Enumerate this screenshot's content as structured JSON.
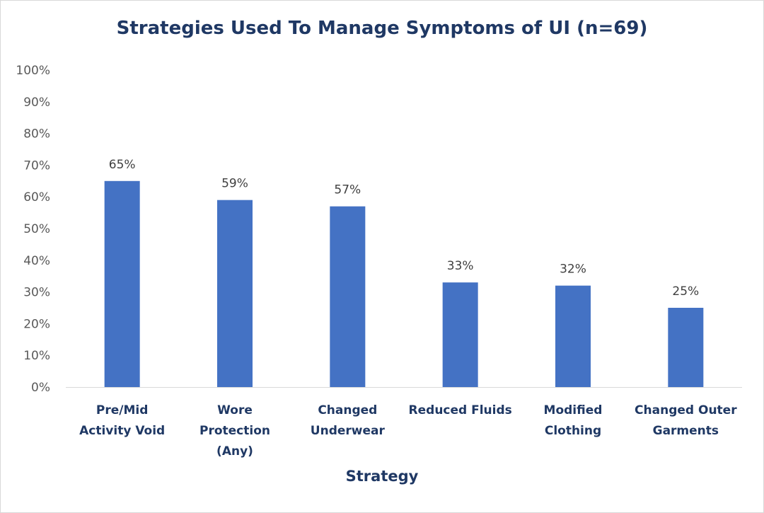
{
  "chart_data": {
    "type": "bar",
    "title": "Strategies Used To Manage Symptoms of UI (n=69)",
    "xlabel": "Strategy",
    "ylabel": "",
    "ylim": [
      0,
      100
    ],
    "ytick_labels": [
      "0%",
      "10%",
      "20%",
      "30%",
      "40%",
      "50%",
      "60%",
      "70%",
      "80%",
      "90%",
      "100%"
    ],
    "categories": [
      [
        "Pre/Mid",
        "Activity Void"
      ],
      [
        "Wore",
        "Protection",
        "(Any)"
      ],
      [
        "Changed",
        "Underwear"
      ],
      [
        "Reduced Fluids"
      ],
      [
        "Modified",
        "Clothing"
      ],
      [
        "Changed Outer",
        "Garments"
      ]
    ],
    "values": [
      65,
      59,
      57,
      33,
      32,
      25
    ],
    "data_labels": [
      "65%",
      "59%",
      "57%",
      "33%",
      "32%",
      "25%"
    ],
    "grid": false,
    "colors": {
      "bar": "#4472c4",
      "axis": "#d9d9d9",
      "title": "#1f3864"
    }
  }
}
